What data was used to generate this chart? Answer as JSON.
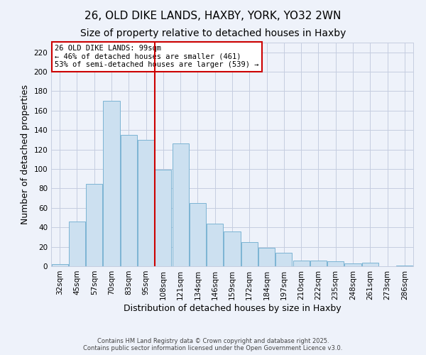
{
  "title": "26, OLD DIKE LANDS, HAXBY, YORK, YO32 2WN",
  "subtitle": "Size of property relative to detached houses in Haxby",
  "xlabel": "Distribution of detached houses by size in Haxby",
  "ylabel": "Number of detached properties",
  "bar_labels": [
    "32sqm",
    "45sqm",
    "57sqm",
    "70sqm",
    "83sqm",
    "95sqm",
    "108sqm",
    "121sqm",
    "134sqm",
    "146sqm",
    "159sqm",
    "172sqm",
    "184sqm",
    "197sqm",
    "210sqm",
    "222sqm",
    "235sqm",
    "248sqm",
    "261sqm",
    "273sqm",
    "286sqm"
  ],
  "bar_values": [
    2,
    46,
    85,
    170,
    135,
    130,
    99,
    126,
    65,
    44,
    36,
    25,
    19,
    14,
    6,
    6,
    5,
    3,
    4,
    0,
    1
  ],
  "bar_color": "#cce0f0",
  "bar_edge_color": "#7bb4d4",
  "vline_x": 5.5,
  "vline_color": "#cc0000",
  "annotation_lines": [
    "26 OLD DIKE LANDS: 99sqm",
    "← 46% of detached houses are smaller (461)",
    "53% of semi-detached houses are larger (539) →"
  ],
  "annotation_box_color": "#ffffff",
  "annotation_box_edge": "#cc0000",
  "ylim": [
    0,
    230
  ],
  "yticks": [
    0,
    20,
    40,
    60,
    80,
    100,
    120,
    140,
    160,
    180,
    200,
    220
  ],
  "footer1": "Contains HM Land Registry data © Crown copyright and database right 2025.",
  "footer2": "Contains public sector information licensed under the Open Government Licence v3.0.",
  "bg_color": "#eef2fa",
  "grid_color": "#c5cde0",
  "title_fontsize": 11,
  "subtitle_fontsize": 10,
  "tick_fontsize": 7.5,
  "label_fontsize": 9,
  "footer_fontsize": 6
}
